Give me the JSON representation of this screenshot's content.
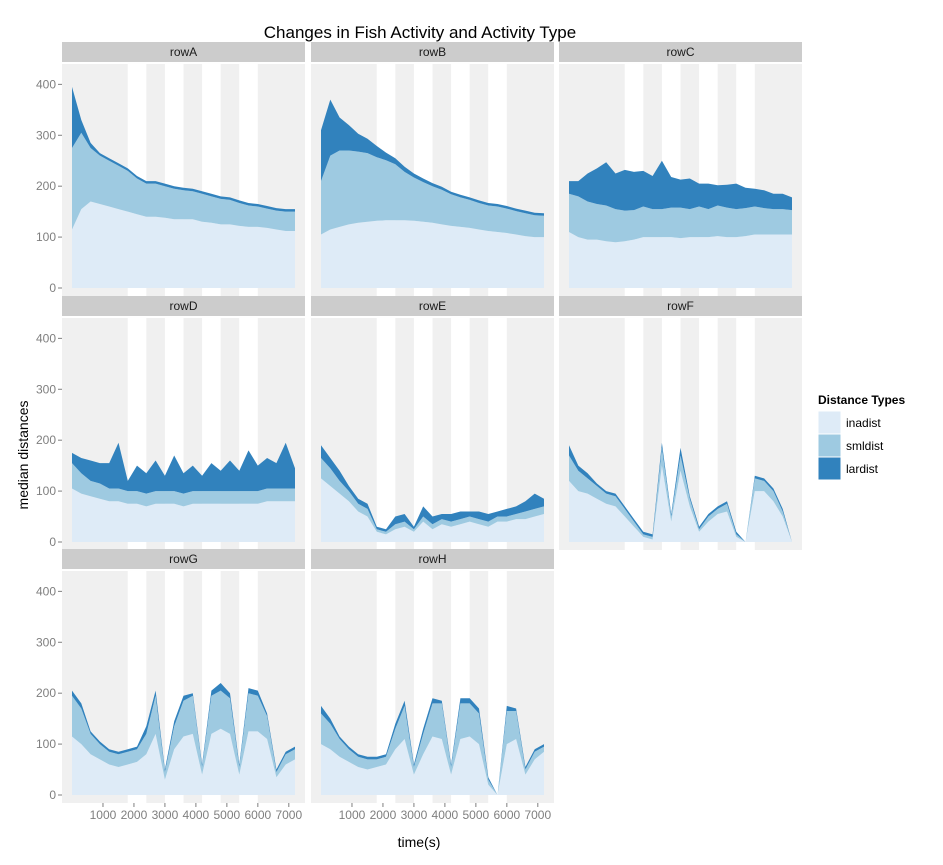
{
  "chart_data": {
    "type": "area",
    "title": "Changes in Fish Activity and Activity Type",
    "xlabel": "time(s)",
    "ylabel": "median distances",
    "xlim": [
      0,
      7200
    ],
    "ylim": [
      0,
      440
    ],
    "x_ticks": [
      1000,
      2000,
      3000,
      4000,
      5000,
      6000,
      7000
    ],
    "x_tick_labels": [
      "1000",
      "2000",
      "3000",
      "4000",
      "5000",
      "6000",
      "7000"
    ],
    "y_ticks": [
      0,
      100,
      200,
      300,
      400
    ],
    "y_tick_labels": [
      "0",
      "100",
      "200",
      "300",
      "400"
    ],
    "stacked": true,
    "light_periods": [
      [
        1800,
        2400
      ],
      [
        3000,
        3600
      ],
      [
        4200,
        4800
      ],
      [
        5400,
        6000
      ]
    ],
    "legend": {
      "title": "Distance Types",
      "position": "right",
      "entries": [
        {
          "label": "inadist",
          "color": "#deebf7"
        },
        {
          "label": "smldist",
          "color": "#9ecae1"
        },
        {
          "label": "lardist",
          "color": "#3182bd"
        }
      ]
    },
    "colors": {
      "panel_background": "#f0f0f0",
      "light_band": "#ffffff",
      "strip_background": "#cccccc",
      "tick_color": "#7f7f7f"
    },
    "x": [
      0,
      300,
      600,
      900,
      1200,
      1500,
      1800,
      2100,
      2400,
      2700,
      3000,
      3300,
      3600,
      3900,
      4200,
      4500,
      4800,
      5100,
      5400,
      5700,
      6000,
      6300,
      6600,
      6900,
      7200
    ],
    "panels": [
      {
        "name": "rowA",
        "inadist": [
          115,
          155,
          170,
          165,
          160,
          155,
          150,
          145,
          140,
          140,
          138,
          135,
          135,
          135,
          130,
          128,
          125,
          125,
          122,
          120,
          120,
          118,
          115,
          112,
          112
        ],
        "smldist": [
          160,
          150,
          105,
          95,
          90,
          85,
          80,
          70,
          65,
          65,
          62,
          60,
          57,
          55,
          55,
          52,
          50,
          48,
          45,
          42,
          40,
          38,
          37,
          38,
          38
        ],
        "lardist": [
          120,
          25,
          10,
          5,
          5,
          5,
          5,
          5,
          5,
          5,
          5,
          5,
          5,
          5,
          5,
          5,
          5,
          5,
          5,
          5,
          5,
          5,
          5,
          5,
          5
        ]
      },
      {
        "name": "rowB",
        "inadist": [
          105,
          115,
          120,
          125,
          128,
          130,
          132,
          133,
          133,
          133,
          132,
          130,
          128,
          125,
          122,
          120,
          118,
          115,
          112,
          110,
          108,
          105,
          102,
          100,
          100
        ],
        "smldist": [
          105,
          145,
          150,
          145,
          140,
          135,
          125,
          118,
          110,
          95,
          85,
          78,
          72,
          68,
          62,
          58,
          55,
          52,
          50,
          50,
          48,
          46,
          45,
          43,
          42
        ],
        "lardist": [
          100,
          110,
          65,
          50,
          35,
          28,
          22,
          15,
          12,
          10,
          8,
          7,
          6,
          6,
          5,
          5,
          5,
          5,
          5,
          5,
          5,
          5,
          5,
          5,
          5
        ]
      },
      {
        "name": "rowC",
        "inadist": [
          110,
          100,
          95,
          95,
          92,
          90,
          92,
          95,
          100,
          100,
          100,
          100,
          98,
          100,
          100,
          100,
          102,
          100,
          100,
          102,
          105,
          105,
          105,
          105,
          105
        ],
        "smldist": [
          75,
          80,
          75,
          70,
          70,
          65,
          60,
          58,
          60,
          55,
          55,
          58,
          60,
          55,
          60,
          55,
          60,
          58,
          55,
          55,
          55,
          52,
          50,
          50,
          48
        ],
        "lardist": [
          25,
          30,
          55,
          70,
          85,
          70,
          80,
          75,
          70,
          65,
          95,
          60,
          55,
          60,
          45,
          50,
          40,
          45,
          50,
          40,
          35,
          35,
          30,
          30,
          25
        ]
      },
      {
        "name": "rowD",
        "inadist": [
          105,
          95,
          90,
          85,
          80,
          80,
          75,
          75,
          70,
          75,
          75,
          75,
          70,
          75,
          75,
          75,
          75,
          75,
          75,
          75,
          75,
          80,
          80,
          80,
          80
        ],
        "smldist": [
          50,
          40,
          30,
          30,
          25,
          25,
          25,
          25,
          25,
          25,
          25,
          25,
          25,
          25,
          25,
          25,
          25,
          25,
          25,
          25,
          25,
          25,
          25,
          25,
          25
        ],
        "lardist": [
          20,
          30,
          40,
          40,
          50,
          90,
          20,
          50,
          40,
          60,
          30,
          70,
          40,
          50,
          30,
          55,
          40,
          60,
          40,
          80,
          50,
          60,
          50,
          90,
          40
        ]
      },
      {
        "name": "rowE",
        "inadist": [
          125,
          110,
          95,
          80,
          60,
          50,
          20,
          15,
          25,
          30,
          20,
          40,
          25,
          35,
          30,
          35,
          40,
          35,
          30,
          40,
          40,
          45,
          45,
          50,
          55
        ],
        "smldist": [
          40,
          35,
          25,
          20,
          15,
          15,
          5,
          5,
          10,
          10,
          5,
          10,
          10,
          10,
          10,
          10,
          10,
          10,
          10,
          10,
          10,
          10,
          15,
          15,
          15
        ],
        "lardist": [
          25,
          20,
          20,
          10,
          10,
          10,
          5,
          5,
          15,
          15,
          5,
          20,
          15,
          10,
          15,
          15,
          10,
          15,
          15,
          10,
          15,
          15,
          20,
          30,
          15
        ]
      },
      {
        "name": "rowF",
        "inadist": [
          120,
          100,
          95,
          85,
          75,
          70,
          50,
          30,
          10,
          5,
          150,
          40,
          140,
          70,
          20,
          40,
          55,
          60,
          10,
          0,
          100,
          100,
          80,
          50,
          0
        ],
        "smldist": [
          50,
          40,
          30,
          25,
          20,
          20,
          15,
          10,
          5,
          5,
          35,
          10,
          30,
          15,
          5,
          10,
          10,
          15,
          5,
          0,
          25,
          20,
          20,
          10,
          0
        ],
        "lardist": [
          20,
          10,
          10,
          5,
          5,
          5,
          5,
          5,
          5,
          5,
          10,
          5,
          15,
          5,
          5,
          5,
          5,
          5,
          5,
          0,
          5,
          5,
          5,
          5,
          0
        ]
      },
      {
        "name": "rowG",
        "inadist": [
          115,
          100,
          80,
          70,
          60,
          55,
          60,
          65,
          80,
          120,
          30,
          90,
          115,
          120,
          40,
          120,
          130,
          120,
          40,
          125,
          125,
          110,
          35,
          60,
          70
        ],
        "smldist": [
          80,
          70,
          40,
          30,
          25,
          25,
          25,
          25,
          40,
          75,
          15,
          45,
          70,
          75,
          15,
          75,
          75,
          70,
          15,
          75,
          70,
          45,
          10,
          20,
          20
        ],
        "lardist": [
          10,
          10,
          5,
          5,
          5,
          5,
          5,
          5,
          15,
          10,
          5,
          10,
          10,
          5,
          5,
          10,
          15,
          10,
          5,
          10,
          10,
          5,
          5,
          5,
          5
        ]
      },
      {
        "name": "rowH",
        "inadist": [
          100,
          90,
          75,
          65,
          55,
          50,
          55,
          60,
          90,
          110,
          40,
          80,
          115,
          110,
          40,
          110,
          115,
          100,
          20,
          0,
          100,
          110,
          40,
          70,
          85
        ],
        "smldist": [
          60,
          50,
          35,
          25,
          20,
          20,
          15,
          15,
          40,
          65,
          15,
          40,
          65,
          70,
          15,
          70,
          65,
          60,
          10,
          0,
          65,
          55,
          10,
          15,
          10
        ],
        "lardist": [
          15,
          10,
          5,
          5,
          5,
          5,
          5,
          5,
          10,
          10,
          5,
          10,
          10,
          5,
          5,
          10,
          10,
          10,
          5,
          0,
          10,
          5,
          5,
          5,
          5
        ]
      }
    ]
  }
}
